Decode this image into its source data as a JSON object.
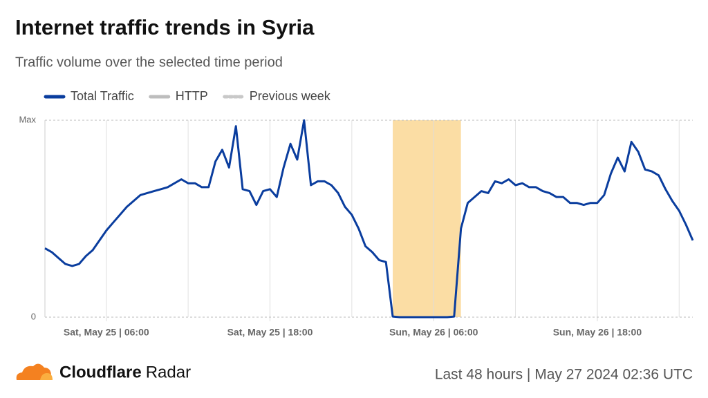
{
  "chart_data": {
    "type": "line",
    "title": "Internet traffic trends in Syria",
    "subtitle": "Traffic volume over the selected time period",
    "x": [
      1.5,
      2,
      2.5,
      3,
      3.5,
      4,
      4.5,
      5,
      5.5,
      6,
      6.5,
      7,
      7.5,
      8,
      8.5,
      9,
      9.5,
      10,
      10.5,
      11,
      11.5,
      12,
      12.5,
      13,
      13.5,
      14,
      14.5,
      15,
      15.5,
      16,
      16.5,
      17,
      17.5,
      18,
      18.5,
      19,
      19.5,
      20,
      20.5,
      21,
      21.5,
      22,
      22.5,
      23,
      23.5,
      24,
      24.5,
      25,
      25.5,
      26,
      26.5,
      27,
      27.5,
      28,
      28.5,
      29,
      29.5,
      30,
      30.5,
      31,
      31.5,
      32,
      32.5,
      33,
      33.5,
      34,
      34.5,
      35,
      35.5,
      36,
      36.5,
      37,
      37.5,
      38,
      38.5,
      39,
      39.5,
      40,
      40.5,
      41,
      41.5,
      42,
      42.5,
      43,
      43.5,
      44,
      44.5,
      45,
      45.5,
      46,
      46.5,
      47,
      47.5,
      48,
      48.5,
      49
    ],
    "series": [
      {
        "name": "Total Traffic",
        "color": "#0a3d9e",
        "values": [
          35,
          33,
          30,
          27,
          26,
          27,
          31,
          34,
          39,
          44,
          48,
          52,
          56,
          59,
          62,
          63,
          64,
          65,
          66,
          68,
          70,
          68,
          68,
          66,
          66,
          79,
          85,
          76,
          97,
          65,
          64,
          57,
          64,
          65,
          61,
          76,
          88,
          80,
          100,
          67,
          69,
          69,
          67,
          63,
          56,
          52,
          45,
          36,
          33,
          29,
          28,
          0.3,
          0,
          0,
          0,
          0,
          0,
          0,
          0,
          0,
          0.3,
          45,
          58,
          61,
          64,
          63,
          69,
          68,
          70,
          67,
          68,
          66,
          66,
          64,
          63,
          61,
          61,
          58,
          58,
          57,
          58,
          58,
          62,
          73,
          81,
          74,
          89,
          84,
          75,
          74,
          72,
          65,
          59,
          54,
          47,
          39
        ]
      }
    ],
    "legend_extra": [
      {
        "name": "HTTP",
        "color": "#bdbdbd",
        "style": "solid"
      },
      {
        "name": "Previous week",
        "color": "#c8c8c8",
        "style": "dashed"
      }
    ],
    "highlight": {
      "range": [
        27,
        32
      ],
      "color": "#fbd99a"
    },
    "xlim": [
      1.5,
      49
    ],
    "xticks": [
      {
        "value": 6,
        "label": "Sat, May 25 | 06:00"
      },
      {
        "value": 18,
        "label": "Sat, May 25 | 18:00"
      },
      {
        "value": 30,
        "label": "Sun, May 26 | 06:00"
      },
      {
        "value": 42,
        "label": "Sun, May 26 | 18:00"
      }
    ],
    "xminorticks": [
      12,
      24,
      36,
      48
    ],
    "ylim": [
      0,
      100
    ],
    "yticks": [
      0,
      {
        "value": 100,
        "label": "Max"
      }
    ],
    "grid": true
  },
  "footer": {
    "brand": "Cloudflare",
    "product": "Radar",
    "period": "Last 48 hours | May 27 2024 02:36 UTC"
  }
}
